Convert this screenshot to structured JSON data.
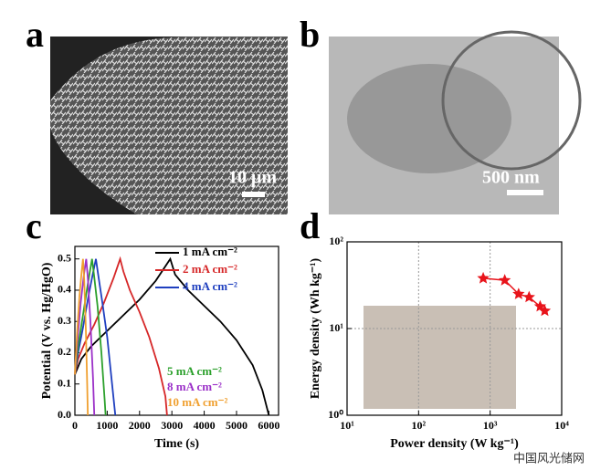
{
  "figure": {
    "panel_labels": [
      "a",
      "b",
      "c",
      "d"
    ],
    "scale_bars": [
      "10 μm",
      "500 nm"
    ],
    "watermark": "中国风光储网"
  },
  "chart_data": [
    {
      "type": "line",
      "xlabel": "Time (s)",
      "ylabel": "Potential (V vs. Hg/HgO)",
      "xlim": [
        0,
        6300
      ],
      "ylim": [
        0,
        0.54
      ],
      "xticks": [
        0,
        1000,
        2000,
        3000,
        4000,
        5000,
        6000
      ],
      "yticks": [
        {
          "value": 0,
          "label": "0.0"
        },
        0.1,
        0.2,
        0.3,
        0.4,
        0.5
      ],
      "series": [
        {
          "name": "1 mA cm⁻²",
          "color": "#000000",
          "x": [
            0,
            200,
            500,
            1000,
            1500,
            2000,
            2500,
            2950,
            3100,
            3500,
            4000,
            4500,
            5000,
            5500,
            5800,
            6000
          ],
          "values": [
            0.13,
            0.18,
            0.22,
            0.27,
            0.32,
            0.37,
            0.43,
            0.5,
            0.45,
            0.4,
            0.35,
            0.3,
            0.24,
            0.16,
            0.08,
            0
          ]
        },
        {
          "name": "2 mA cm⁻²",
          "color": "#d62728",
          "x": [
            0,
            100,
            300,
            600,
            900,
            1200,
            1400,
            1500,
            1700,
            2000,
            2300,
            2600,
            2800,
            2850
          ],
          "values": [
            0.13,
            0.18,
            0.23,
            0.29,
            0.36,
            0.44,
            0.5,
            0.46,
            0.4,
            0.33,
            0.25,
            0.15,
            0.06,
            0
          ]
        },
        {
          "name": "4 mA cm⁻²",
          "color": "#1f3fbf",
          "x": [
            0,
            100,
            250,
            400,
            550,
            650,
            720,
            850,
            1000,
            1150,
            1250
          ],
          "values": [
            0.13,
            0.2,
            0.28,
            0.37,
            0.45,
            0.5,
            0.45,
            0.36,
            0.25,
            0.1,
            0
          ]
        },
        {
          "name": "5 mA cm⁻²",
          "color": "#2ca02c",
          "x": [
            0,
            100,
            250,
            400,
            530,
            590,
            700,
            820,
            920,
            950
          ],
          "values": [
            0.13,
            0.22,
            0.32,
            0.42,
            0.5,
            0.45,
            0.35,
            0.2,
            0.05,
            0
          ]
        },
        {
          "name": "8 mA cm⁻²",
          "color": "#9b30c8",
          "x": [
            0,
            80,
            180,
            280,
            350,
            400,
            480,
            560,
            600
          ],
          "values": [
            0.13,
            0.24,
            0.36,
            0.45,
            0.5,
            0.44,
            0.3,
            0.12,
            0
          ]
        },
        {
          "name": "10 mA cm⁻²",
          "color": "#f0a030",
          "x": [
            0,
            60,
            140,
            210,
            250,
            290,
            340,
            380,
            400
          ],
          "values": [
            0.13,
            0.25,
            0.38,
            0.46,
            0.5,
            0.43,
            0.27,
            0.1,
            0
          ]
        }
      ]
    },
    {
      "type": "scatter",
      "xlabel": "Power density (W kg⁻¹)",
      "ylabel": "Energy density (Wh  kg⁻¹)",
      "log": true,
      "grid": true,
      "xlim": [
        10,
        10000
      ],
      "ylim": [
        1,
        100
      ],
      "xticks": [
        {
          "value": 10,
          "label": "10¹"
        },
        {
          "value": 100,
          "label": "10²"
        },
        {
          "value": 1000,
          "label": "10³"
        },
        {
          "value": 10000,
          "label": "10⁴"
        }
      ],
      "yticks": [
        {
          "value": 1,
          "label": "10⁰"
        },
        {
          "value": 10,
          "label": "10¹"
        },
        {
          "value": 100,
          "label": "10²"
        }
      ],
      "series": [
        {
          "color": "#e8141b",
          "x": [
            800,
            1600,
            2500,
            3500,
            5000,
            5800
          ],
          "values": [
            38,
            36,
            25,
            23,
            18,
            16
          ]
        }
      ]
    }
  ]
}
